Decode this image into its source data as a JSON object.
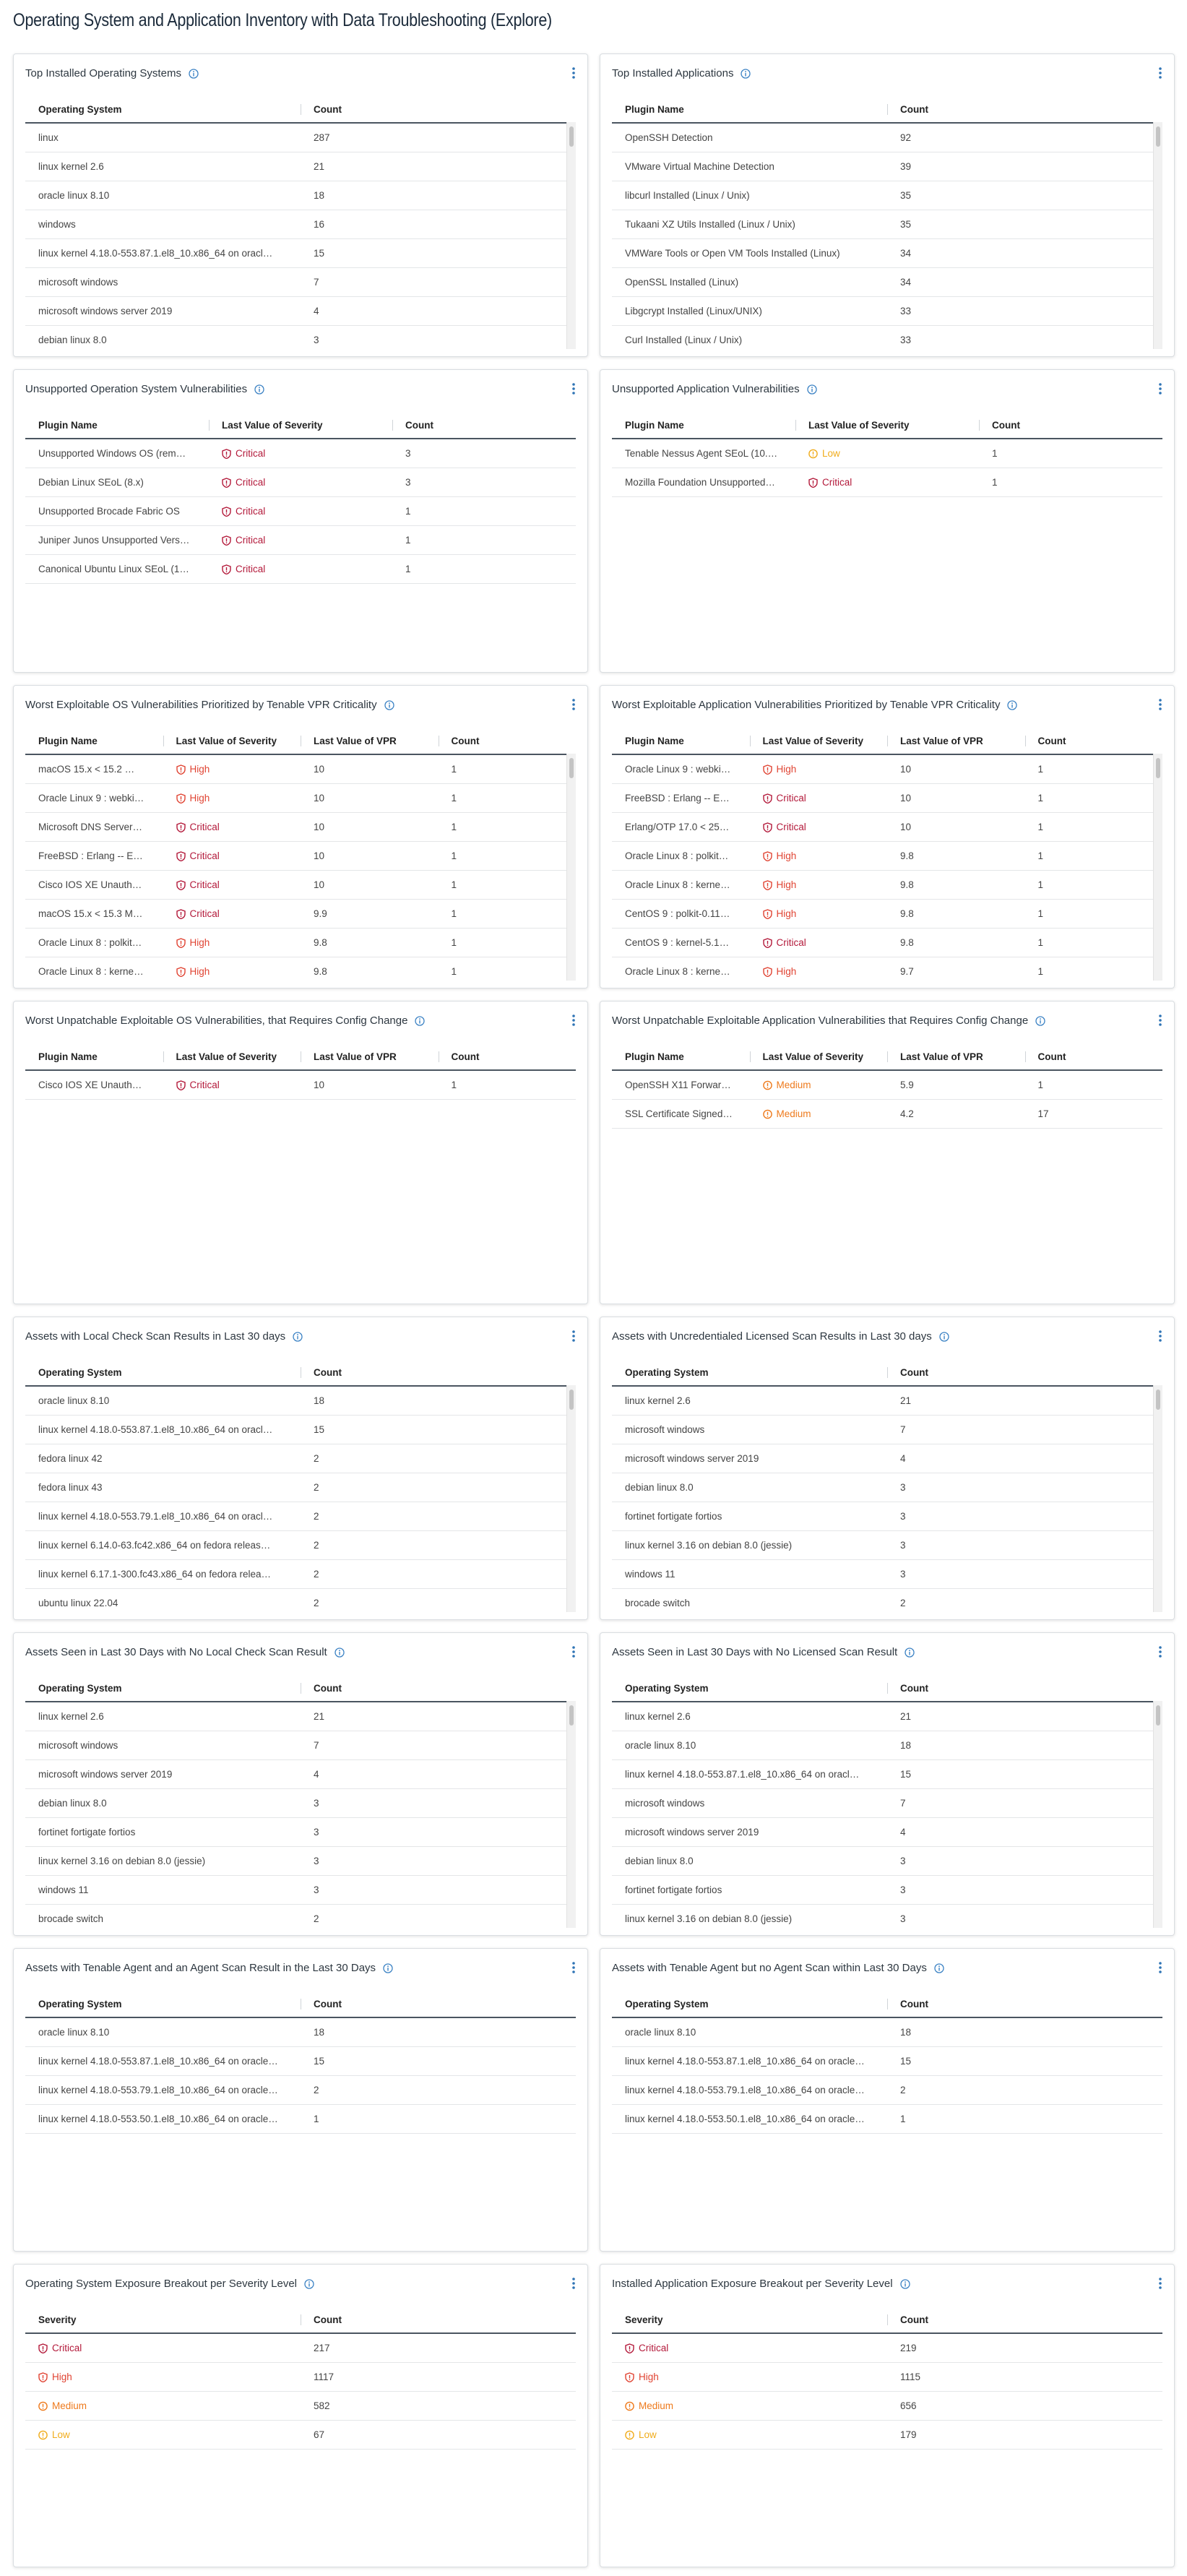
{
  "header": {
    "title": "Operating System and Application Inventory with Data Troubleshooting (Explore)"
  },
  "severity_styles": {
    "Critical": {
      "color": "#b3193a",
      "icon": "shield"
    },
    "High": {
      "color": "#e04332",
      "icon": "shield"
    },
    "Medium": {
      "color": "#ee7a1c",
      "icon": "circle"
    },
    "Low": {
      "color": "#f0ac1c",
      "icon": "circle"
    }
  },
  "panels": [
    {
      "title": "Top Installed Operating Systems",
      "columns": [
        "Operating System",
        "Count"
      ],
      "rows": [
        [
          "linux",
          287
        ],
        [
          "linux kernel 2.6",
          21
        ],
        [
          "oracle linux 8.10",
          18
        ],
        [
          "windows",
          16
        ],
        [
          "linux kernel 4.18.0-553.87.1.el8_10.x86_64 on oracl…",
          15
        ],
        [
          "microsoft windows",
          7
        ],
        [
          "microsoft windows server 2019",
          4
        ],
        [
          "debian linux 8.0",
          3
        ]
      ]
    },
    {
      "title": "Top Installed Applications",
      "columns": [
        "Plugin Name",
        "Count"
      ],
      "rows": [
        [
          "OpenSSH Detection",
          92
        ],
        [
          "VMware Virtual Machine Detection",
          39
        ],
        [
          "libcurl Installed (Linux / Unix)",
          35
        ],
        [
          "Tukaani XZ Utils Installed (Linux / Unix)",
          35
        ],
        [
          "VMWare Tools or Open VM Tools Installed (Linux)",
          34
        ],
        [
          "OpenSSL Installed (Linux)",
          34
        ],
        [
          "Libgcrypt Installed (Linux/UNIX)",
          33
        ],
        [
          "Curl Installed (Linux / Unix)",
          33
        ]
      ]
    },
    {
      "title": "Unsupported Operation System Vulnerabilities",
      "columns": [
        "Plugin Name",
        "Last Value of Severity",
        "Count"
      ],
      "severity_column": 1,
      "rows": [
        [
          "Unsupported Windows OS (rem…",
          "Critical",
          3
        ],
        [
          "Debian Linux SEoL (8.x)",
          "Critical",
          3
        ],
        [
          "Unsupported Brocade Fabric OS",
          "Critical",
          1
        ],
        [
          "Juniper Junos Unsupported Vers…",
          "Critical",
          1
        ],
        [
          "Canonical Ubuntu Linux SEoL (1…",
          "Critical",
          1
        ]
      ]
    },
    {
      "title": "Unsupported Application Vulnerabilities",
      "columns": [
        "Plugin Name",
        "Last Value of Severity",
        "Count"
      ],
      "severity_column": 1,
      "rows": [
        [
          "Tenable Nessus Agent SEoL (10.…",
          "Low",
          1
        ],
        [
          "Mozilla Foundation Unsupported…",
          "Critical",
          1
        ]
      ]
    },
    {
      "title": "Worst Exploitable OS Vulnerabilities Prioritized by Tenable VPR Criticality",
      "columns": [
        "Plugin Name",
        "Last Value of Severity",
        "Last Value of VPR",
        "Count"
      ],
      "severity_column": 1,
      "rows": [
        [
          "macOS 15.x < 15.2 …",
          "High",
          10,
          1
        ],
        [
          "Oracle Linux 9 : webki…",
          "High",
          10,
          1
        ],
        [
          "Microsoft DNS Server…",
          "Critical",
          10,
          1
        ],
        [
          "FreeBSD : Erlang -- E…",
          "Critical",
          10,
          1
        ],
        [
          "Cisco IOS XE Unauth…",
          "Critical",
          10,
          1
        ],
        [
          "macOS 15.x < 15.3 M…",
          "Critical",
          9.9,
          1
        ],
        [
          "Oracle Linux 8 : polkit…",
          "High",
          9.8,
          1
        ],
        [
          "Oracle Linux 8 : kerne…",
          "High",
          9.8,
          1
        ]
      ]
    },
    {
      "title": "Worst Exploitable Application Vulnerabilities Prioritized by Tenable VPR Criticality",
      "columns": [
        "Plugin Name",
        "Last Value of Severity",
        "Last Value of VPR",
        "Count"
      ],
      "severity_column": 1,
      "rows": [
        [
          "Oracle Linux 9 : webki…",
          "High",
          10,
          1
        ],
        [
          "FreeBSD : Erlang -- E…",
          "Critical",
          10,
          1
        ],
        [
          "Erlang/OTP 17.0 < 25…",
          "Critical",
          10,
          1
        ],
        [
          "Oracle Linux 8 : polkit…",
          "High",
          9.8,
          1
        ],
        [
          "Oracle Linux 8 : kerne…",
          "High",
          9.8,
          1
        ],
        [
          "CentOS 9 : polkit-0.11…",
          "High",
          9.8,
          1
        ],
        [
          "CentOS 9 : kernel-5.1…",
          "Critical",
          9.8,
          1
        ],
        [
          "Oracle Linux 8 : kerne…",
          "High",
          9.7,
          1
        ]
      ]
    },
    {
      "title": "Worst Unpatchable Exploitable OS Vulnerabilities, that Requires Config Change",
      "columns": [
        "Plugin Name",
        "Last Value of Severity",
        "Last Value of VPR",
        "Count"
      ],
      "severity_column": 1,
      "rows": [
        [
          "Cisco IOS XE Unauth…",
          "Critical",
          10,
          1
        ]
      ]
    },
    {
      "title": "Worst Unpatchable Exploitable Application Vulnerabilities that Requires Config Change",
      "columns": [
        "Plugin Name",
        "Last Value of Severity",
        "Last Value of VPR",
        "Count"
      ],
      "severity_column": 1,
      "rows": [
        [
          "OpenSSH X11 Forwar…",
          "Medium",
          5.9,
          1
        ],
        [
          "SSL Certificate Signed…",
          "Medium",
          4.2,
          17
        ]
      ]
    },
    {
      "title": "Assets with Local Check Scan Results in Last 30 days",
      "columns": [
        "Operating System",
        "Count"
      ],
      "rows": [
        [
          "oracle linux 8.10",
          18
        ],
        [
          "linux kernel 4.18.0-553.87.1.el8_10.x86_64 on oracl…",
          15
        ],
        [
          "fedora linux 42",
          2
        ],
        [
          "fedora linux 43",
          2
        ],
        [
          "linux kernel 4.18.0-553.79.1.el8_10.x86_64 on oracl…",
          2
        ],
        [
          "linux kernel 6.14.0-63.fc42.x86_64 on fedora releas…",
          2
        ],
        [
          "linux kernel 6.17.1-300.fc43.x86_64 on fedora relea…",
          2
        ],
        [
          "ubuntu linux 22.04",
          2
        ]
      ]
    },
    {
      "title": "Assets with Uncredentialed Licensed Scan Results in Last 30 days",
      "columns": [
        "Operating System",
        "Count"
      ],
      "rows": [
        [
          "linux kernel 2.6",
          21
        ],
        [
          "microsoft windows",
          7
        ],
        [
          "microsoft windows server 2019",
          4
        ],
        [
          "debian linux 8.0",
          3
        ],
        [
          "fortinet fortigate fortios",
          3
        ],
        [
          "linux kernel 3.16 on debian 8.0 (jessie)",
          3
        ],
        [
          "windows 11",
          3
        ],
        [
          "brocade switch",
          2
        ]
      ]
    },
    {
      "title": "Assets Seen in Last 30 Days with No Local Check Scan Result",
      "columns": [
        "Operating System",
        "Count"
      ],
      "rows": [
        [
          "linux kernel 2.6",
          21
        ],
        [
          "microsoft windows",
          7
        ],
        [
          "microsoft windows server 2019",
          4
        ],
        [
          "debian linux 8.0",
          3
        ],
        [
          "fortinet fortigate fortios",
          3
        ],
        [
          "linux kernel 3.16 on debian 8.0 (jessie)",
          3
        ],
        [
          "windows 11",
          3
        ],
        [
          "brocade switch",
          2
        ]
      ]
    },
    {
      "title": "Assets Seen in Last 30 Days with No Licensed Scan Result",
      "columns": [
        "Operating System",
        "Count"
      ],
      "rows": [
        [
          "linux kernel 2.6",
          21
        ],
        [
          "oracle linux 8.10",
          18
        ],
        [
          "linux kernel 4.18.0-553.87.1.el8_10.x86_64 on oracl…",
          15
        ],
        [
          "microsoft windows",
          7
        ],
        [
          "microsoft windows server 2019",
          4
        ],
        [
          "debian linux 8.0",
          3
        ],
        [
          "fortinet fortigate fortios",
          3
        ],
        [
          "linux kernel 3.16 on debian 8.0 (jessie)",
          3
        ]
      ]
    },
    {
      "title": "Assets with Tenable Agent and an Agent Scan Result in the Last 30 Days",
      "columns": [
        "Operating System",
        "Count"
      ],
      "rows": [
        [
          "oracle linux 8.10",
          18
        ],
        [
          "linux kernel 4.18.0-553.87.1.el8_10.x86_64 on oracle…",
          15
        ],
        [
          "linux kernel 4.18.0-553.79.1.el8_10.x86_64 on oracle…",
          2
        ],
        [
          "linux kernel 4.18.0-553.50.1.el8_10.x86_64 on oracle…",
          1
        ]
      ]
    },
    {
      "title": "Assets with Tenable Agent but no Agent Scan within Last 30 Days",
      "columns": [
        "Operating System",
        "Count"
      ],
      "rows": [
        [
          "oracle linux 8.10",
          18
        ],
        [
          "linux kernel 4.18.0-553.87.1.el8_10.x86_64 on oracle…",
          15
        ],
        [
          "linux kernel 4.18.0-553.79.1.el8_10.x86_64 on oracle…",
          2
        ],
        [
          "linux kernel 4.18.0-553.50.1.el8_10.x86_64 on oracle…",
          1
        ]
      ]
    },
    {
      "title": "Operating System Exposure Breakout per Severity Level",
      "columns": [
        "Severity",
        "Count"
      ],
      "severity_column": 0,
      "rows": [
        [
          "Critical",
          217
        ],
        [
          "High",
          1117
        ],
        [
          "Medium",
          582
        ],
        [
          "Low",
          67
        ]
      ]
    },
    {
      "title": "Installed Application Exposure Breakout per Severity Level",
      "columns": [
        "Severity",
        "Count"
      ],
      "severity_column": 0,
      "rows": [
        [
          "Critical",
          219
        ],
        [
          "High",
          1115
        ],
        [
          "Medium",
          656
        ],
        [
          "Low",
          179
        ]
      ]
    }
  ]
}
